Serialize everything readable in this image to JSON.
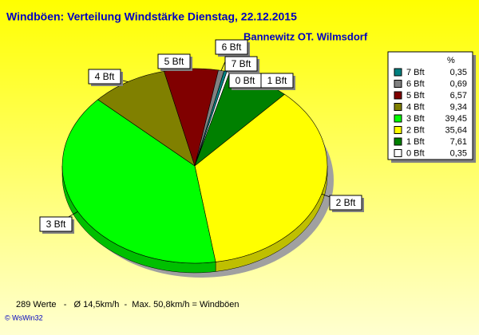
{
  "chart_data": {
    "type": "pie",
    "title": "Windböen: Verteilung Windstärke  Dienstag, 22.12.2015",
    "subtitle": "Bannewitz OT. Wilmsdorf",
    "legend_header": "%",
    "categories": [
      "7 Bft",
      "6 Bft",
      "5 Bft",
      "4 Bft",
      "3 Bft",
      "2 Bft",
      "1 Bft",
      "0 Bft"
    ],
    "values": [
      0.35,
      0.69,
      6.57,
      9.34,
      39.45,
      35.64,
      7.61,
      0.35
    ],
    "value_labels": [
      "0,35",
      "0,69",
      "6,57",
      "9,34",
      "39,45",
      "35,64",
      "7,61",
      "0,35"
    ],
    "colors": [
      "#008080",
      "#808080",
      "#800000",
      "#808000",
      "#00ff00",
      "#ffff00",
      "#008000",
      "#ffffff"
    ],
    "footer": "289 Werte   -   Ø 14,5km/h  -  Max. 50,8km/h = Windböen",
    "credit": "© WsWin32"
  }
}
